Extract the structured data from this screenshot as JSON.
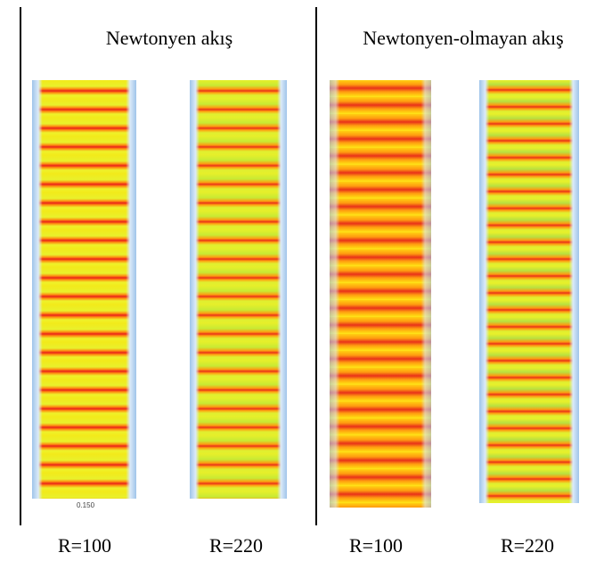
{
  "headers": [
    "Newtonyen akış",
    "Newtonyen-olmayan akış"
  ],
  "panels": [
    {
      "label": "R=100",
      "scale_label": "0.150"
    },
    {
      "label": "R=220"
    },
    {
      "label": "R=100"
    },
    {
      "label": "R=220"
    }
  ]
}
